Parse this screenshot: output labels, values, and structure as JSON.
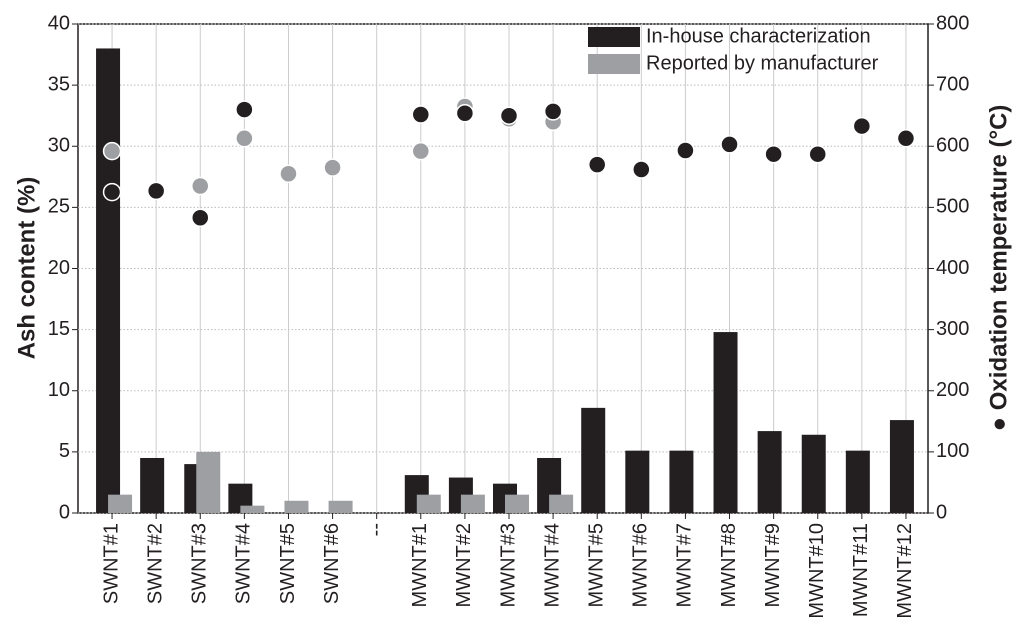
{
  "chart_data": {
    "type": "bar",
    "categories": [
      "SWNT#1",
      "SWNT#2",
      "SWNT#3",
      "SWNT#4",
      "SWNT#5",
      "SWNT#6",
      "--",
      "MWNT#1",
      "MWNT#2",
      "MWNT#3",
      "MWNT#4",
      "MWNT#5",
      "MWNT#6",
      "MWNT#7",
      "MWNT#8",
      "MWNT#9",
      "MWNT#10",
      "MWNT#11",
      "MWNT#12"
    ],
    "series": [
      {
        "name": "In-house characterization",
        "type": "bar",
        "color": "#231f20",
        "values": [
          38,
          4.5,
          4.0,
          2.4,
          null,
          null,
          null,
          3.1,
          2.9,
          2.4,
          4.5,
          8.6,
          5.1,
          5.1,
          14.8,
          6.7,
          6.4,
          5.1,
          7.6
        ]
      },
      {
        "name": "Reported by manufacturer",
        "type": "bar",
        "color": "#9d9fa2",
        "values": [
          1.5,
          null,
          5.0,
          0.6,
          1.0,
          1.0,
          null,
          1.5,
          1.5,
          1.5,
          1.5,
          null,
          null,
          null,
          null,
          null,
          null,
          null,
          null
        ]
      },
      {
        "type": "scatter",
        "axis": "y2",
        "color": "#231f20",
        "values": [
          525,
          527,
          483,
          660,
          null,
          null,
          null,
          652,
          654,
          650,
          657,
          570,
          562,
          593,
          603,
          587,
          587,
          633,
          613
        ]
      },
      {
        "type": "scatter",
        "axis": "y2",
        "color": "#9d9fa2",
        "values": [
          592,
          null,
          535,
          613,
          555,
          565,
          null,
          592,
          665,
          645,
          640,
          null,
          null,
          null,
          null,
          null,
          null,
          null,
          null
        ]
      }
    ],
    "ylabel": "Ash content (%)",
    "y2label": "● Oxidation temperature (°C)",
    "ylim": [
      0,
      40
    ],
    "yticks": [
      0,
      5,
      10,
      15,
      20,
      25,
      30,
      35,
      40
    ],
    "y2lim": [
      0,
      800
    ],
    "y2ticks": [
      0,
      100,
      200,
      300,
      400,
      500,
      600,
      700,
      800
    ],
    "grid": true,
    "legend": "upper right"
  }
}
